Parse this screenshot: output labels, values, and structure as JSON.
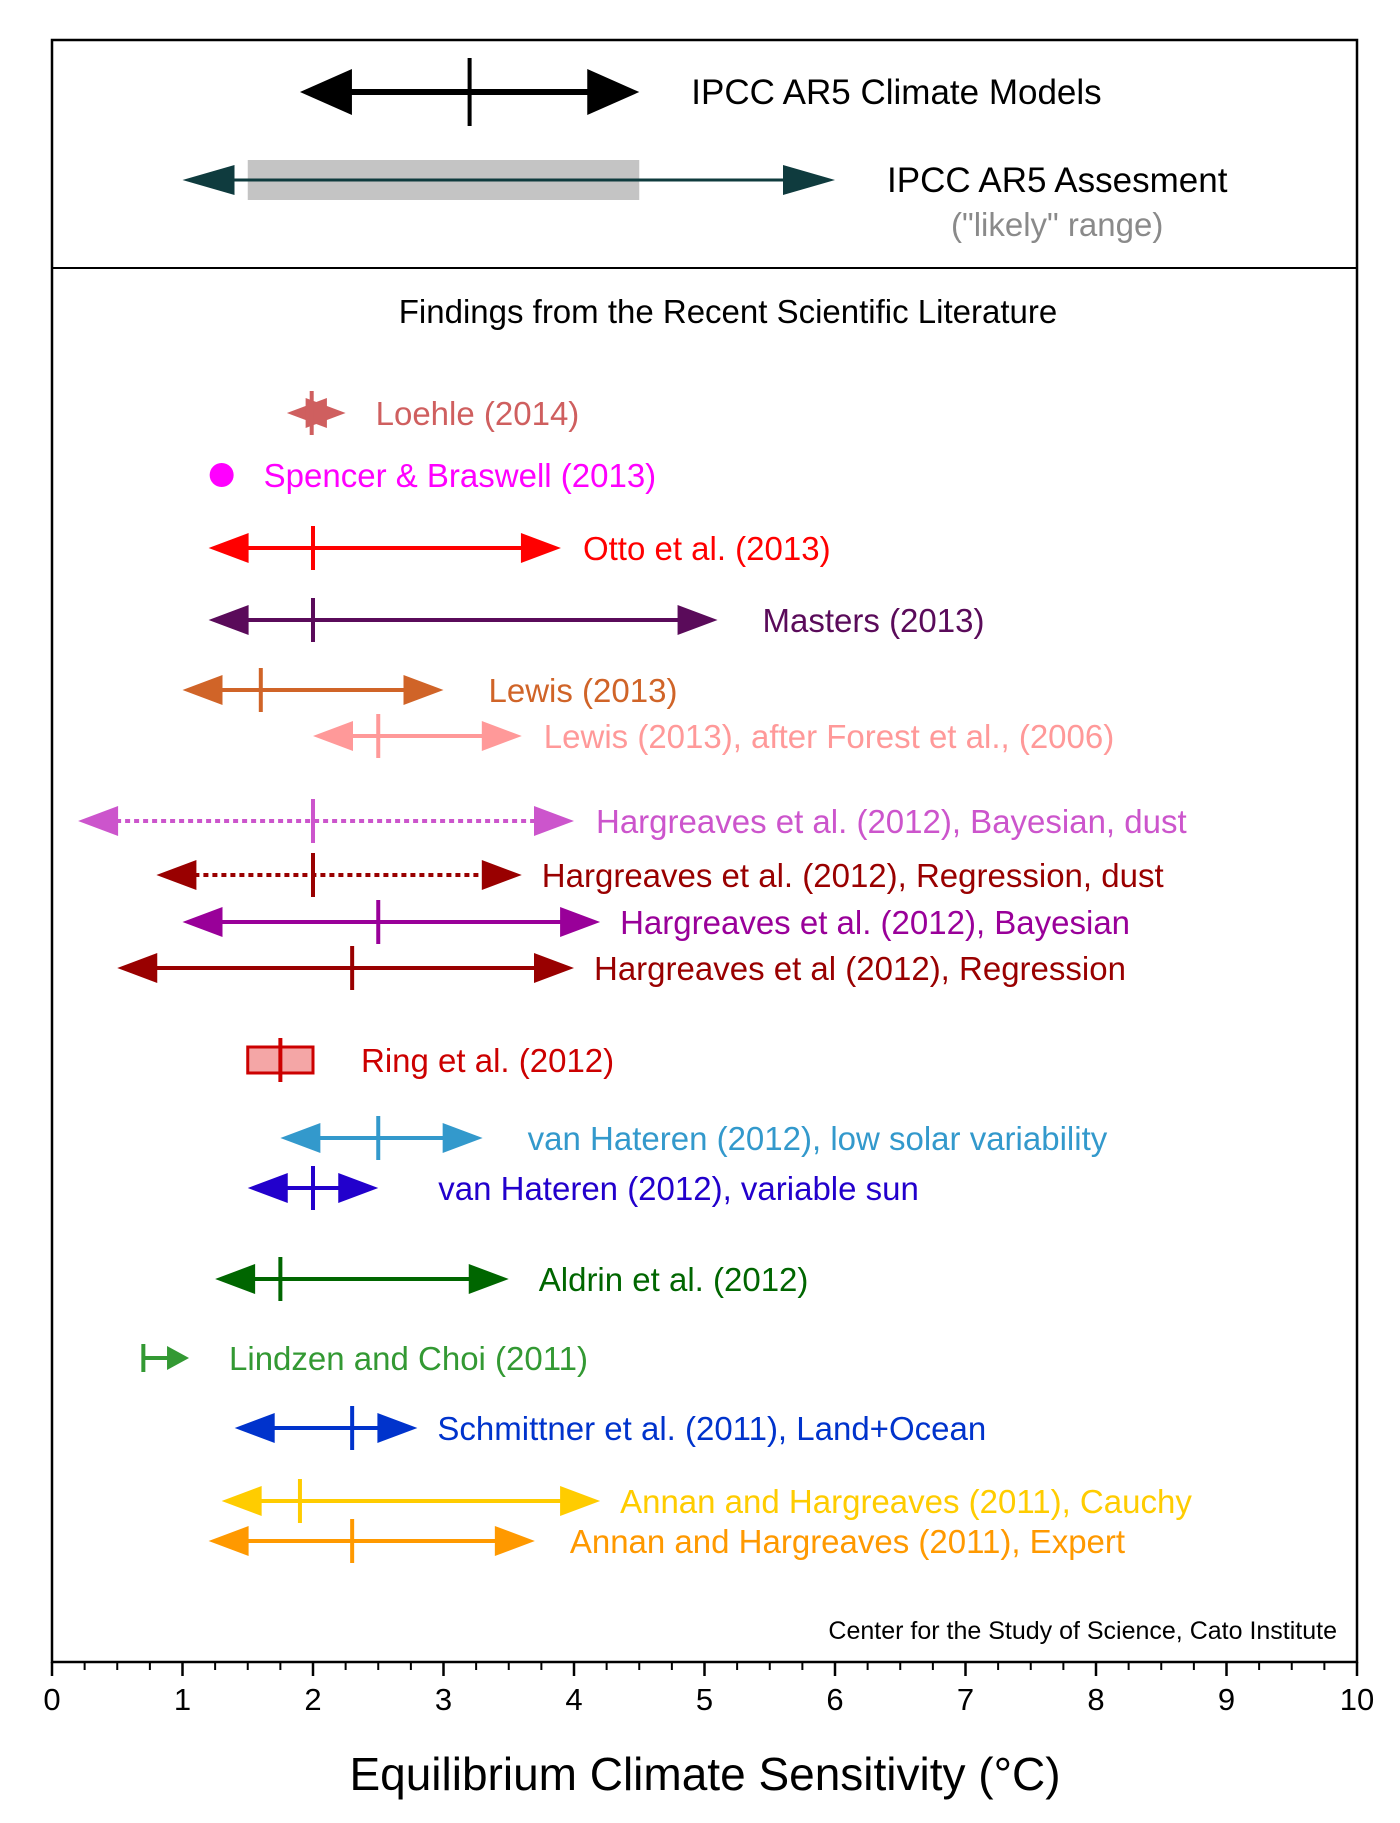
{
  "chart_data": {
    "type": "range",
    "xlabel": "Equilibrium Climate Sensitivity (°C)",
    "xlim": [
      0,
      10
    ],
    "x_ticks": [
      "0",
      "1",
      "2",
      "3",
      "4",
      "5",
      "6",
      "7",
      "8",
      "9",
      "10"
    ],
    "x_minor_step": 0.25,
    "section_title": "Findings from the Recent Scientific Literature",
    "credit": "Center for the Study of Science, Cato Institute",
    "ipcc": [
      {
        "label": "IPCC AR5 Climate Models",
        "sublabel": "",
        "low": 1.9,
        "high": 4.5,
        "best": 3.2,
        "color": "#000000",
        "box": null
      },
      {
        "label": "IPCC AR5 Assesment",
        "sublabel": "(\"likely\" range)",
        "sublabel_color": "#8a8a8a",
        "low": 1.0,
        "high": 6.0,
        "best": null,
        "color": "#0f3b3e",
        "box": [
          1.5,
          4.5
        ],
        "box_color": "#c4c4c4"
      }
    ],
    "studies": [
      {
        "label": "Loehle (2014)",
        "low": 1.8,
        "high": 2.25,
        "best": 1.99,
        "color": "#cf5f5f",
        "style": "solid",
        "marker": "arrows"
      },
      {
        "label": "Spencer & Braswell (2013)",
        "low": 1.3,
        "high": 1.3,
        "best": 1.3,
        "color": "#ff00ff",
        "style": "solid",
        "marker": "dot"
      },
      {
        "label": "Otto et al. (2013)",
        "low": 1.2,
        "high": 3.9,
        "best": 2.0,
        "color": "#ff0000",
        "style": "solid",
        "marker": "arrows"
      },
      {
        "label": "Masters (2013)",
        "low": 1.2,
        "high": 5.1,
        "best": 2.0,
        "color": "#5a0b5a",
        "style": "solid",
        "marker": "arrows"
      },
      {
        "label": "Lewis (2013)",
        "low": 1.0,
        "high": 3.0,
        "best": 1.6,
        "color": "#d06428",
        "style": "solid",
        "marker": "arrows"
      },
      {
        "label": "Lewis (2013), after Forest et al., (2006)",
        "low": 2.0,
        "high": 3.6,
        "best": 2.5,
        "color": "#ff9999",
        "style": "solid",
        "marker": "arrows"
      },
      {
        "label": "Hargreaves et al. (2012), Bayesian, dust",
        "low": 0.2,
        "high": 4.0,
        "best": 2.0,
        "color": "#cc55cc",
        "style": "dotted",
        "marker": "arrows"
      },
      {
        "label": "Hargreaves et al. (2012), Regression, dust",
        "low": 0.8,
        "high": 3.6,
        "best": 2.0,
        "color": "#990000",
        "style": "dotted",
        "marker": "arrows"
      },
      {
        "label": "Hargreaves et al. (2012), Bayesian",
        "low": 1.0,
        "high": 4.2,
        "best": 2.5,
        "color": "#990099",
        "style": "solid",
        "marker": "arrows"
      },
      {
        "label": "Hargreaves et al (2012), Regression",
        "low": 0.5,
        "high": 4.0,
        "best": 2.3,
        "color": "#990000",
        "style": "solid",
        "marker": "arrows"
      },
      {
        "label": "Ring et al. (2012)",
        "low": 1.5,
        "high": 2.0,
        "best": 1.75,
        "color": "#cc0000",
        "style": "solid",
        "marker": "box"
      },
      {
        "label": "van Hateren (2012), low solar variability",
        "low": 1.75,
        "high": 3.3,
        "best": 2.5,
        "color": "#3399cc",
        "style": "solid",
        "marker": "arrows"
      },
      {
        "label": "van Hateren (2012), variable sun",
        "low": 1.5,
        "high": 2.5,
        "best": 2.0,
        "color": "#2200cc",
        "style": "solid",
        "marker": "arrows"
      },
      {
        "label": "Aldrin et al. (2012)",
        "low": 1.25,
        "high": 3.5,
        "best": 1.75,
        "color": "#006600",
        "style": "solid",
        "marker": "arrows"
      },
      {
        "label": "Lindzen and Choi  (2011)",
        "low": 0.7,
        "high": 1.05,
        "best": 0.7,
        "color": "#339933",
        "style": "solid",
        "marker": "right-arrow"
      },
      {
        "label": "Schmittner et al.  (2011), Land+Ocean",
        "low": 1.4,
        "high": 2.8,
        "best": 2.3,
        "color": "#0033cc",
        "style": "solid",
        "marker": "arrows"
      },
      {
        "label": "Annan and Hargreaves (2011), Cauchy",
        "low": 1.3,
        "high": 4.2,
        "best": 1.9,
        "color": "#ffcc00",
        "style": "solid",
        "marker": "arrows"
      },
      {
        "label": "Annan and Hargreaves (2011), Expert",
        "low": 1.2,
        "high": 3.7,
        "best": 2.3,
        "color": "#ff9900",
        "style": "solid",
        "marker": "arrows"
      }
    ]
  }
}
